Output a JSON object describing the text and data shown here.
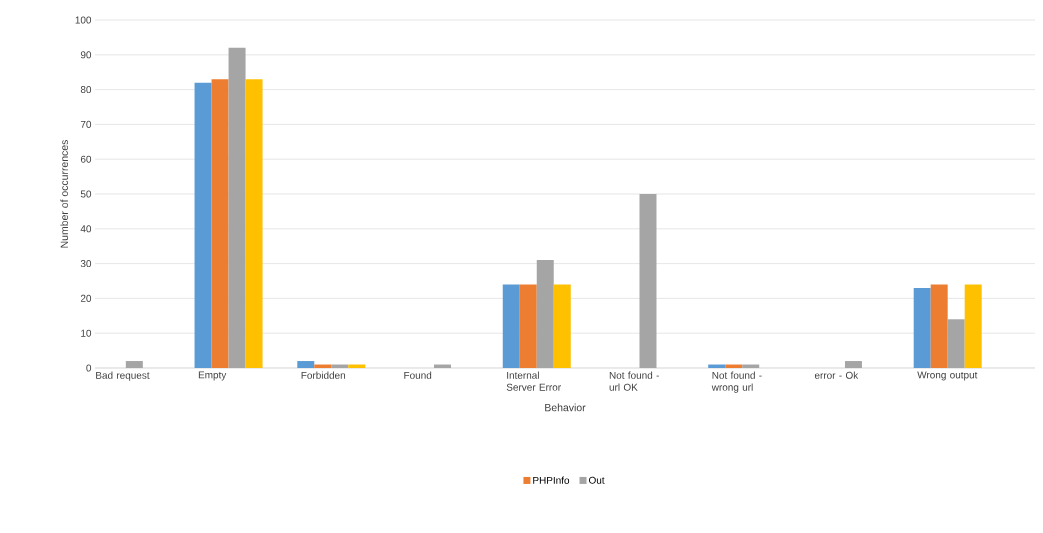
{
  "chart_data": {
    "type": "bar",
    "xlabel": "Behavior",
    "ylabel": "Number of occurrences",
    "categories": [
      "Bad request",
      "Empty",
      "Forbidden",
      "Found",
      "Internal Server Error",
      "Not found - url OK",
      "Not found - wrong url",
      "error - Ok",
      "Wrong output"
    ],
    "series": [
      {
        "color": "#5b9bd5",
        "values": [
          0,
          82,
          2,
          0,
          24,
          0,
          1,
          0,
          23
        ]
      },
      {
        "name": "PHPInfo",
        "color": "#ed7d31",
        "values": [
          0,
          83,
          1,
          0,
          24,
          0,
          1,
          0,
          24
        ]
      },
      {
        "name": "Out",
        "color": "#a5a5a5",
        "values": [
          2,
          92,
          1,
          1,
          31,
          50,
          1,
          2,
          14
        ]
      },
      {
        "color": "#ffc000",
        "values": [
          0,
          83,
          1,
          0,
          24,
          0,
          0,
          0,
          24
        ]
      }
    ],
    "ylim": [
      0,
      100
    ],
    "yticks": [
      0,
      10,
      20,
      30,
      40,
      50,
      60,
      70,
      80,
      90,
      100
    ],
    "grid": "y",
    "legend": "bottom"
  }
}
